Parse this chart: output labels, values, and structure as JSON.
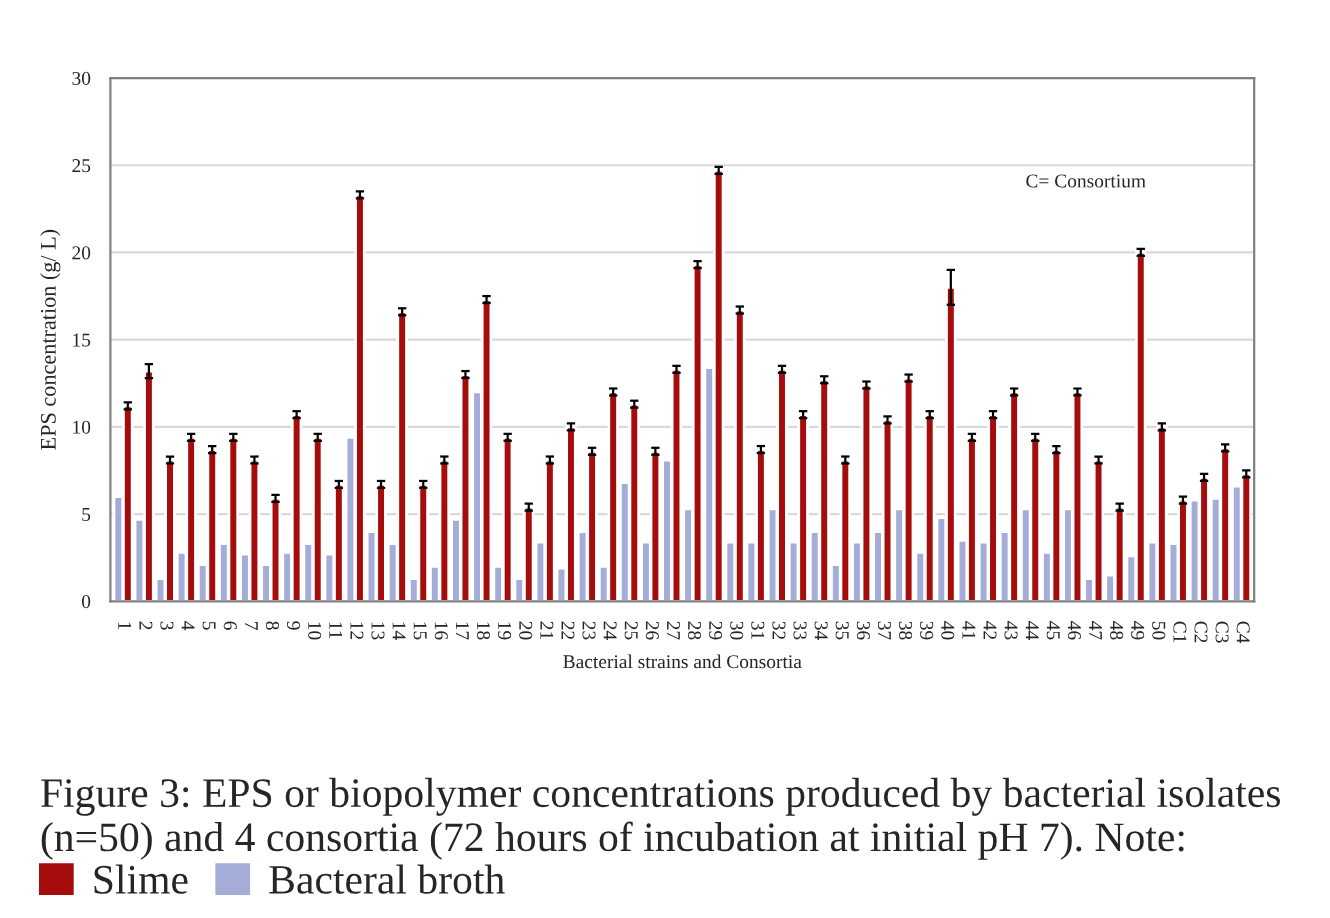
{
  "chart_data": {
    "type": "bar",
    "xlabel": "Bacterial strains and Consortia",
    "ylabel": "EPS concentration (g/ L)",
    "categories": [
      "1",
      "2",
      "3",
      "4",
      "5",
      "6",
      "7",
      "8",
      "9",
      "10",
      "11",
      "12",
      "13",
      "14",
      "15",
      "16",
      "17",
      "18",
      "19",
      "20",
      "21",
      "22",
      "23",
      "24",
      "25",
      "26",
      "27",
      "28",
      "29",
      "30",
      "31",
      "32",
      "33",
      "34",
      "35",
      "36",
      "37",
      "38",
      "39",
      "40",
      "41",
      "42",
      "43",
      "44",
      "45",
      "46",
      "47",
      "48",
      "49",
      "50",
      "C1",
      "C2",
      "C3",
      "C4"
    ],
    "series": [
      {
        "name": "Bacteral broth",
        "color": "#a4acd8",
        "values": [
          6.0,
          4.7,
          1.3,
          2.8,
          2.1,
          3.3,
          2.7,
          2.1,
          2.8,
          3.3,
          2.7,
          9.4,
          4.0,
          3.3,
          1.3,
          2.0,
          4.7,
          12.0,
          2.0,
          1.3,
          3.4,
          1.9,
          4.0,
          2.0,
          6.8,
          3.4,
          8.1,
          5.3,
          13.4,
          3.4,
          3.4,
          5.3,
          3.4,
          4.0,
          2.1,
          3.4,
          4.0,
          5.3,
          2.8,
          4.8,
          3.5,
          3.4,
          4.0,
          5.3,
          2.8,
          5.3,
          1.3,
          1.5,
          2.6,
          3.4,
          3.3,
          5.8,
          5.9,
          6.6
        ]
      },
      {
        "name": "Slime",
        "color": "#a50d0d",
        "values": [
          11.2,
          13.2,
          8.1,
          9.4,
          8.7,
          9.4,
          8.1,
          5.9,
          10.7,
          9.4,
          6.7,
          23.3,
          6.7,
          16.6,
          6.7,
          8.1,
          13.0,
          17.3,
          9.4,
          5.4,
          8.1,
          10.0,
          8.6,
          12.0,
          11.3,
          8.6,
          13.3,
          19.3,
          24.7,
          16.7,
          8.7,
          13.3,
          10.7,
          12.7,
          8.1,
          12.4,
          10.4,
          12.8,
          10.7,
          18.0,
          9.4,
          10.7,
          12.0,
          9.4,
          8.7,
          12.0,
          8.1,
          5.4,
          20.0,
          10.0,
          5.8,
          7.1,
          8.8,
          7.3
        ],
        "errors": [
          0.2,
          0.4,
          0.2,
          0.2,
          0.2,
          0.2,
          0.2,
          0.2,
          0.2,
          0.2,
          0.2,
          0.2,
          0.2,
          0.2,
          0.2,
          0.2,
          0.2,
          0.2,
          0.2,
          0.2,
          0.2,
          0.2,
          0.2,
          0.2,
          0.2,
          0.2,
          0.2,
          0.2,
          0.2,
          0.2,
          0.2,
          0.2,
          0.2,
          0.2,
          0.2,
          0.2,
          0.2,
          0.2,
          0.2,
          1.0,
          0.2,
          0.2,
          0.2,
          0.2,
          0.2,
          0.2,
          0.2,
          0.2,
          0.2,
          0.2,
          0.2,
          0.2,
          0.2,
          0.2
        ]
      }
    ],
    "ylim": [
      0,
      30
    ],
    "yticks": [
      0,
      5,
      10,
      15,
      20,
      25,
      30
    ],
    "grid": "y",
    "legend": "bottom",
    "annotations": [
      "C= Consortium",
      "Figure 3: EPS or biopolymer concentrations produced by bacterial isolates (n=50) and 4 consortia (72 hours of incubation at initial pH 7). Note:"
    ]
  }
}
